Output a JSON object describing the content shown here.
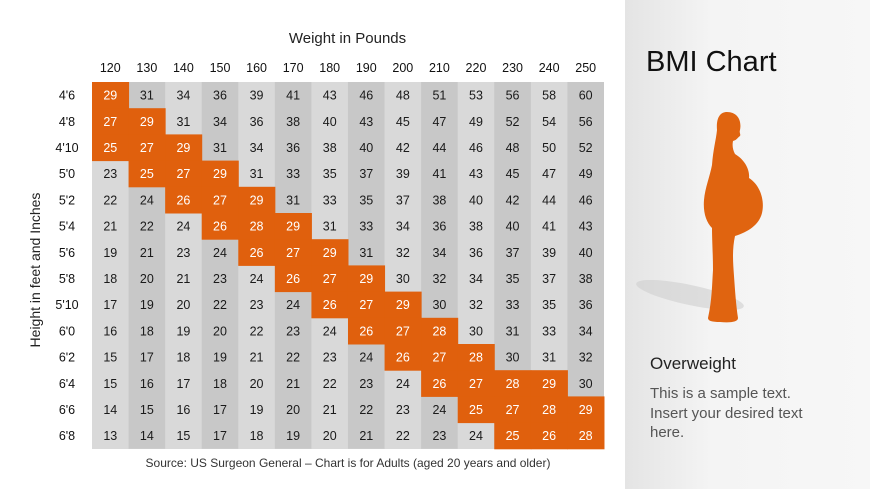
{
  "slide": {
    "title": "BMI Chart",
    "subtitle": "Overweight",
    "body_text": "This is a sample text. Insert your desired text here.",
    "source_note": "Source: US Surgeon General – Chart is for Adults (aged 20 years and older)",
    "figure_icon": "overweight-person-silhouette-icon"
  },
  "colors": {
    "highlight": "#e0600d",
    "grid_dark": "#c8c8c8",
    "grid_light": "#d9d9d9",
    "silhouette": "#e06410"
  },
  "chart_data": {
    "type": "table",
    "title": "",
    "xlabel": "Weight in Pounds",
    "ylabel": "Height in feet and Inches",
    "columns": [
      "120",
      "130",
      "140",
      "150",
      "160",
      "170",
      "180",
      "190",
      "200",
      "210",
      "220",
      "230",
      "240",
      "250"
    ],
    "rows": [
      "4'6",
      "4'8",
      "4'10",
      "5'0",
      "5'2",
      "5'4",
      "5'6",
      "5'8",
      "5'10",
      "6'0",
      "6'2",
      "6'4",
      "6'6",
      "6'8"
    ],
    "values": [
      [
        29,
        31,
        34,
        36,
        39,
        41,
        43,
        46,
        48,
        51,
        53,
        56,
        58,
        60
      ],
      [
        27,
        29,
        31,
        34,
        36,
        38,
        40,
        43,
        45,
        47,
        49,
        52,
        54,
        56
      ],
      [
        25,
        27,
        29,
        31,
        34,
        36,
        38,
        40,
        42,
        44,
        46,
        48,
        50,
        52
      ],
      [
        23,
        25,
        27,
        29,
        31,
        33,
        35,
        37,
        39,
        41,
        43,
        45,
        47,
        49
      ],
      [
        22,
        24,
        26,
        27,
        29,
        31,
        33,
        35,
        37,
        38,
        40,
        42,
        44,
        46
      ],
      [
        21,
        22,
        24,
        26,
        28,
        29,
        31,
        33,
        34,
        36,
        38,
        40,
        41,
        43
      ],
      [
        19,
        21,
        23,
        24,
        26,
        27,
        29,
        31,
        32,
        34,
        36,
        37,
        39,
        40
      ],
      [
        18,
        20,
        21,
        23,
        24,
        26,
        27,
        29,
        30,
        32,
        34,
        35,
        37,
        38
      ],
      [
        17,
        19,
        20,
        22,
        23,
        24,
        26,
        27,
        29,
        30,
        32,
        33,
        35,
        36
      ],
      [
        16,
        18,
        19,
        20,
        22,
        23,
        24,
        26,
        27,
        28,
        30,
        31,
        33,
        34
      ],
      [
        15,
        17,
        18,
        19,
        21,
        22,
        23,
        24,
        26,
        27,
        28,
        30,
        31,
        32
      ],
      [
        15,
        16,
        17,
        18,
        20,
        21,
        22,
        23,
        24,
        26,
        27,
        28,
        29,
        30
      ],
      [
        14,
        15,
        16,
        17,
        19,
        20,
        21,
        22,
        23,
        24,
        25,
        27,
        28,
        29
      ],
      [
        13,
        14,
        15,
        17,
        18,
        19,
        20,
        21,
        22,
        23,
        24,
        25,
        26,
        28
      ]
    ],
    "highlighted_range": [
      25,
      29
    ]
  }
}
